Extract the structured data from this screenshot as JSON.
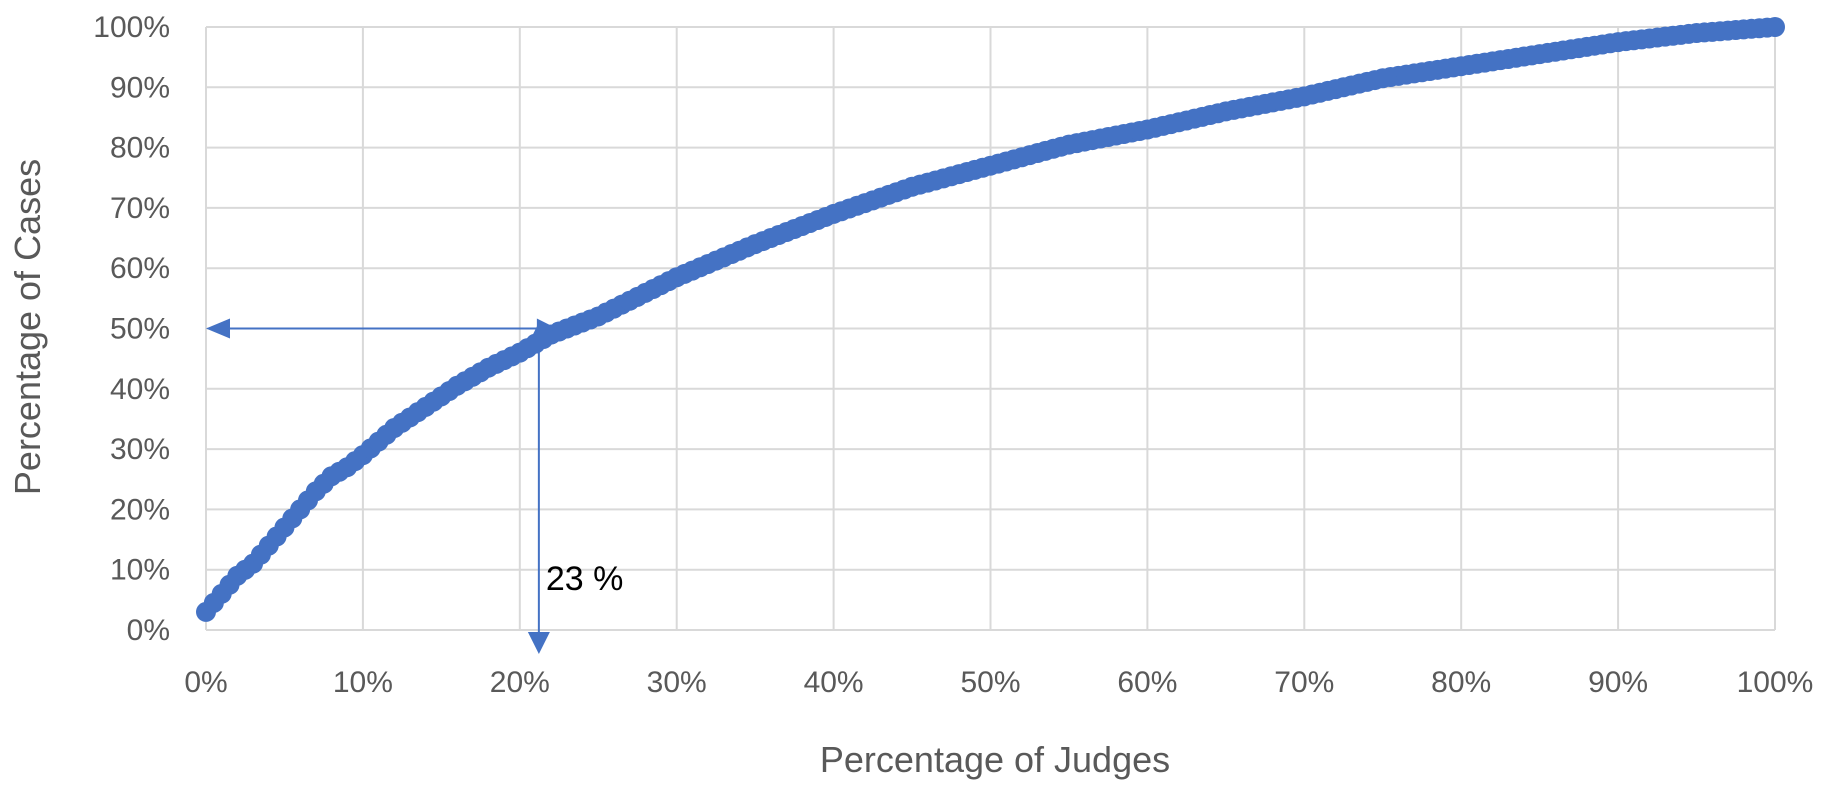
{
  "chart_data": {
    "type": "scatter",
    "title": "",
    "xlabel": "Percentage of Judges",
    "ylabel": "Percentage of Cases",
    "xlim": [
      0,
      100
    ],
    "ylim": [
      0,
      100
    ],
    "x_ticks": [
      "0%",
      "10%",
      "20%",
      "30%",
      "40%",
      "50%",
      "60%",
      "70%",
      "80%",
      "90%",
      "100%"
    ],
    "y_ticks": [
      "0%",
      "10%",
      "20%",
      "30%",
      "40%",
      "50%",
      "60%",
      "70%",
      "80%",
      "90%",
      "100%"
    ],
    "grid": true,
    "legend": "none",
    "series_color": "#4472C4",
    "series": [
      {
        "x": [
          0,
          1,
          2,
          3,
          4,
          5,
          6,
          7,
          8,
          9,
          10,
          12,
          14,
          16,
          18,
          20,
          22,
          25,
          30,
          35,
          40,
          45,
          50,
          55,
          60,
          65,
          70,
          75,
          80,
          85,
          90,
          95,
          100
        ],
        "values": [
          3,
          6,
          9,
          11,
          14,
          17,
          20,
          23,
          25.5,
          27,
          29,
          33.5,
          37,
          40.5,
          43.5,
          46,
          49,
          52,
          58.5,
          64,
          69,
          73.5,
          77,
          80.5,
          83,
          86,
          88.5,
          91.5,
          93.5,
          95.5,
          97.5,
          99,
          100
        ]
      }
    ],
    "annotations": [
      {
        "text": "23 %",
        "x": 23,
        "y": 50
      }
    ]
  }
}
